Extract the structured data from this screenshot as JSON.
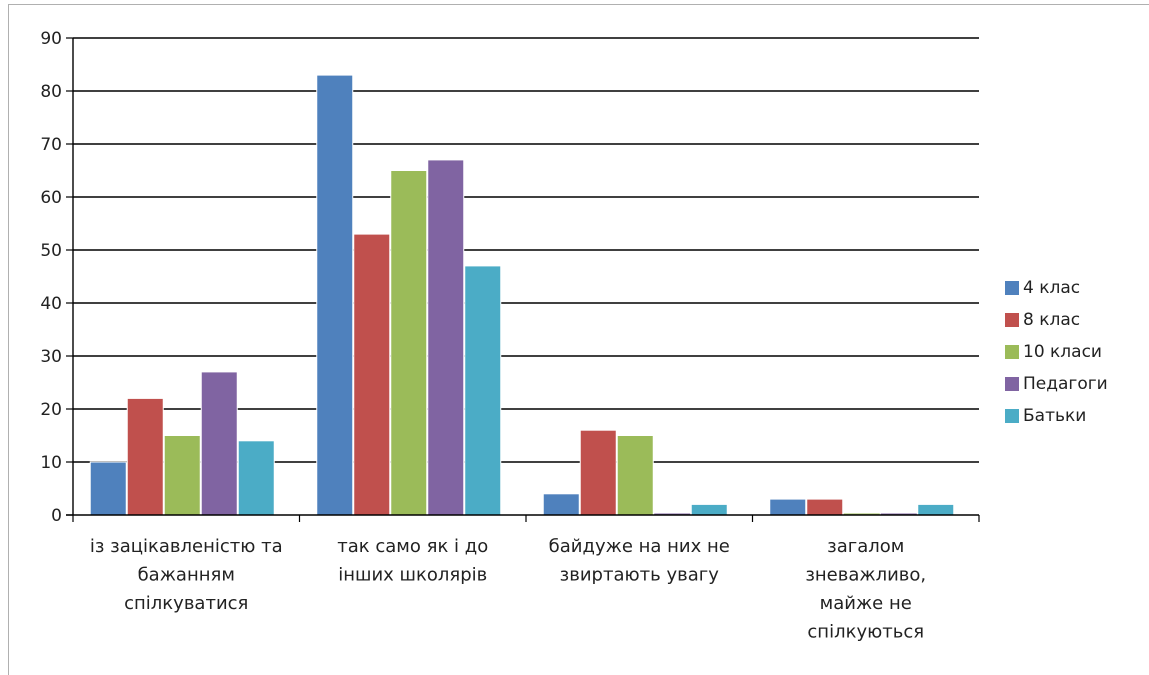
{
  "chart_data": {
    "type": "bar",
    "categories": [
      "із зацікавленістю та бажанням спілкуватися",
      "так само як і до інших школярів",
      "байдуже на них не звиртають увагу",
      "загалом зневажливо, майже не спілкуються"
    ],
    "category_lines": [
      [
        "із зацікавленістю та",
        "бажанням",
        "спілкуватися"
      ],
      [
        "так само як і до",
        "інших школярів"
      ],
      [
        "байдуже на них не",
        "звиртають увагу"
      ],
      [
        "загалом",
        "зневажливо,",
        "майже не",
        "спілкуються"
      ]
    ],
    "series": [
      {
        "name": "4 клас",
        "color": "#4f81bd",
        "values": [
          10,
          83,
          4,
          3
        ]
      },
      {
        "name": "8 клас",
        "color": "#c0504d",
        "values": [
          22,
          53,
          16,
          3
        ]
      },
      {
        "name": "10 класи",
        "color": "#9bbb59",
        "values": [
          15,
          65,
          15,
          0
        ]
      },
      {
        "name": "Педагоги",
        "color": "#8064a2",
        "values": [
          27,
          67,
          0,
          0
        ]
      },
      {
        "name": "Батьки",
        "color": "#4bacc6",
        "values": [
          14,
          47,
          2,
          2
        ]
      }
    ],
    "ylim": [
      0,
      90
    ],
    "yticks": [
      "0",
      "10",
      "20",
      "30",
      "40",
      "50",
      "60",
      "70",
      "80",
      "90"
    ],
    "grid": true,
    "legend": "right"
  }
}
